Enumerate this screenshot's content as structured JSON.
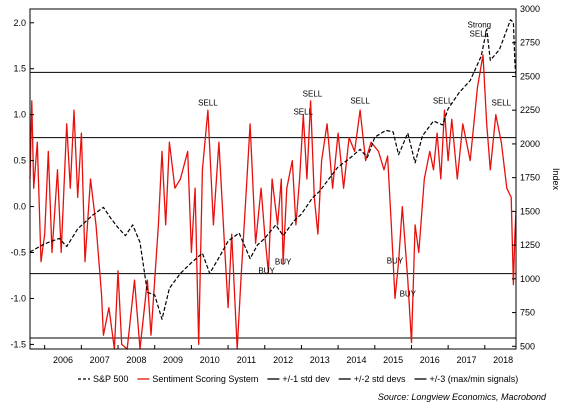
{
  "chart_data": {
    "type": "line",
    "title": "",
    "left_axis": {
      "ylim": [
        -1.55,
        2.15
      ],
      "ticks": [
        2.0,
        1.5,
        1.0,
        0.5,
        0.0,
        -0.5,
        -1.0,
        -1.5
      ],
      "tick_labels": [
        "2.0",
        "1.5",
        "1.0",
        "0.5",
        "0.0",
        "-0.5",
        "-1.0",
        "-1.5"
      ]
    },
    "right_axis": {
      "label": "Index",
      "ylim": [
        480,
        3000
      ],
      "ticks": [
        3000,
        2750,
        2500,
        2250,
        2000,
        1750,
        1500,
        1250,
        1000,
        750,
        500
      ],
      "tick_labels": [
        "3000",
        "2750",
        "2500",
        "2250",
        "2000",
        "1750",
        "1500",
        "1250",
        "1000",
        "750",
        "500"
      ]
    },
    "x_axis": {
      "xlim": [
        2005.6,
        2018.85
      ],
      "years": [
        "2006",
        "2007",
        "2008",
        "2009",
        "2010",
        "2011",
        "2012",
        "2013",
        "2014",
        "2015",
        "2016",
        "2017",
        "2018"
      ]
    },
    "reference_lines": [
      {
        "name": "+/-1 std dev",
        "values": [
          0.75,
          -0.73
        ]
      },
      {
        "name": "+/-2 std devs",
        "values": [
          1.46
        ]
      },
      {
        "name": "+/-3 (max/min signals)",
        "values": [
          -1.43
        ]
      }
    ],
    "series": [
      {
        "name": "S&P 500",
        "axis": "right",
        "color": "#000000",
        "style": "dashed",
        "points": [
          [
            2005.6,
            1200
          ],
          [
            2006.0,
            1260
          ],
          [
            2006.4,
            1300
          ],
          [
            2006.6,
            1240
          ],
          [
            2006.9,
            1370
          ],
          [
            2007.3,
            1470
          ],
          [
            2007.6,
            1530
          ],
          [
            2007.8,
            1450
          ],
          [
            2008.0,
            1380
          ],
          [
            2008.2,
            1320
          ],
          [
            2008.4,
            1400
          ],
          [
            2008.6,
            1270
          ],
          [
            2008.8,
            900
          ],
          [
            2009.0,
            880
          ],
          [
            2009.2,
            700
          ],
          [
            2009.4,
            930
          ],
          [
            2009.7,
            1040
          ],
          [
            2010.0,
            1120
          ],
          [
            2010.3,
            1190
          ],
          [
            2010.5,
            1040
          ],
          [
            2010.8,
            1180
          ],
          [
            2011.0,
            1280
          ],
          [
            2011.3,
            1340
          ],
          [
            2011.6,
            1150
          ],
          [
            2011.8,
            1250
          ],
          [
            2012.0,
            1300
          ],
          [
            2012.3,
            1400
          ],
          [
            2012.5,
            1320
          ],
          [
            2012.8,
            1430
          ],
          [
            2013.0,
            1480
          ],
          [
            2013.3,
            1600
          ],
          [
            2013.5,
            1650
          ],
          [
            2013.8,
            1760
          ],
          [
            2014.0,
            1830
          ],
          [
            2014.3,
            1890
          ],
          [
            2014.6,
            1960
          ],
          [
            2014.8,
            1900
          ],
          [
            2015.0,
            2050
          ],
          [
            2015.3,
            2100
          ],
          [
            2015.5,
            2090
          ],
          [
            2015.65,
            1920
          ],
          [
            2015.9,
            2080
          ],
          [
            2016.1,
            1860
          ],
          [
            2016.3,
            2060
          ],
          [
            2016.6,
            2170
          ],
          [
            2016.85,
            2140
          ],
          [
            2017.0,
            2260
          ],
          [
            2017.3,
            2380
          ],
          [
            2017.6,
            2470
          ],
          [
            2017.9,
            2650
          ],
          [
            2018.05,
            2850
          ],
          [
            2018.15,
            2620
          ],
          [
            2018.4,
            2700
          ],
          [
            2018.7,
            2920
          ],
          [
            2018.78,
            2900
          ],
          [
            2018.82,
            2600
          ],
          [
            2018.85,
            2500
          ]
        ]
      },
      {
        "name": "Sentiment Scoring System",
        "axis": "left",
        "color": "#e8100c",
        "style": "solid",
        "points": [
          [
            2005.6,
            0.3
          ],
          [
            2005.65,
            1.15
          ],
          [
            2005.7,
            0.2
          ],
          [
            2005.8,
            0.7
          ],
          [
            2005.9,
            -0.6
          ],
          [
            2006.0,
            -0.3
          ],
          [
            2006.1,
            0.6
          ],
          [
            2006.2,
            -0.5
          ],
          [
            2006.35,
            0.4
          ],
          [
            2006.45,
            -0.5
          ],
          [
            2006.6,
            0.9
          ],
          [
            2006.7,
            0.2
          ],
          [
            2006.8,
            1.05
          ],
          [
            2006.9,
            0.1
          ],
          [
            2007.0,
            0.8
          ],
          [
            2007.1,
            -0.6
          ],
          [
            2007.25,
            0.3
          ],
          [
            2007.4,
            -0.2
          ],
          [
            2007.55,
            -0.95
          ],
          [
            2007.6,
            -1.4
          ],
          [
            2007.75,
            -1.1
          ],
          [
            2007.9,
            -1.55
          ],
          [
            2008.0,
            -0.7
          ],
          [
            2008.1,
            -1.5
          ],
          [
            2008.25,
            -1.55
          ],
          [
            2008.45,
            -0.8
          ],
          [
            2008.6,
            -1.55
          ],
          [
            2008.8,
            -0.8
          ],
          [
            2008.9,
            -1.4
          ],
          [
            2009.1,
            -0.2
          ],
          [
            2009.2,
            0.6
          ],
          [
            2009.3,
            -0.2
          ],
          [
            2009.4,
            0.7
          ],
          [
            2009.55,
            0.2
          ],
          [
            2009.7,
            0.3
          ],
          [
            2009.9,
            0.6
          ],
          [
            2010.0,
            -0.5
          ],
          [
            2010.1,
            0.2
          ],
          [
            2010.2,
            -1.5
          ],
          [
            2010.3,
            0.4
          ],
          [
            2010.45,
            1.05
          ],
          [
            2010.6,
            -0.2
          ],
          [
            2010.75,
            0.7
          ],
          [
            2010.9,
            -0.4
          ],
          [
            2011.0,
            -1.1
          ],
          [
            2011.1,
            -0.3
          ],
          [
            2011.25,
            -1.55
          ],
          [
            2011.35,
            -0.8
          ],
          [
            2011.5,
            0.2
          ],
          [
            2011.6,
            0.9
          ],
          [
            2011.75,
            -0.4
          ],
          [
            2011.9,
            0.2
          ],
          [
            2012.0,
            -0.3
          ],
          [
            2012.1,
            -0.72
          ],
          [
            2012.2,
            0.3
          ],
          [
            2012.35,
            -0.2
          ],
          [
            2012.45,
            0.3
          ],
          [
            2012.5,
            -0.62
          ],
          [
            2012.6,
            0.2
          ],
          [
            2012.75,
            0.5
          ],
          [
            2012.85,
            -0.2
          ],
          [
            2012.95,
            0.3
          ],
          [
            2013.05,
            1.0
          ],
          [
            2013.15,
            0.3
          ],
          [
            2013.25,
            1.15
          ],
          [
            2013.35,
            0.1
          ],
          [
            2013.45,
            -0.3
          ],
          [
            2013.55,
            0.5
          ],
          [
            2013.7,
            0.9
          ],
          [
            2013.85,
            0.2
          ],
          [
            2014.0,
            0.8
          ],
          [
            2014.15,
            0.2
          ],
          [
            2014.3,
            0.75
          ],
          [
            2014.45,
            0.6
          ],
          [
            2014.6,
            1.05
          ],
          [
            2014.75,
            0.5
          ],
          [
            2014.9,
            0.7
          ],
          [
            2015.1,
            0.6
          ],
          [
            2015.25,
            0.4
          ],
          [
            2015.35,
            0.55
          ],
          [
            2015.45,
            -0.2
          ],
          [
            2015.55,
            -1.0
          ],
          [
            2015.65,
            -0.6
          ],
          [
            2015.75,
            0.0
          ],
          [
            2015.9,
            -0.8
          ],
          [
            2016.0,
            -1.48
          ],
          [
            2016.1,
            -0.2
          ],
          [
            2016.2,
            -0.5
          ],
          [
            2016.35,
            0.3
          ],
          [
            2016.5,
            0.6
          ],
          [
            2016.6,
            0.4
          ],
          [
            2016.7,
            0.8
          ],
          [
            2016.8,
            0.3
          ],
          [
            2016.9,
            1.05
          ],
          [
            2017.0,
            0.5
          ],
          [
            2017.1,
            0.95
          ],
          [
            2017.25,
            0.3
          ],
          [
            2017.4,
            0.9
          ],
          [
            2017.6,
            0.5
          ],
          [
            2017.8,
            1.3
          ],
          [
            2017.95,
            1.65
          ],
          [
            2018.05,
            0.9
          ],
          [
            2018.15,
            0.4
          ],
          [
            2018.3,
            1.0
          ],
          [
            2018.45,
            0.7
          ],
          [
            2018.6,
            0.2
          ],
          [
            2018.72,
            0.1
          ],
          [
            2018.78,
            -0.85
          ],
          [
            2018.82,
            -0.3
          ],
          [
            2018.85,
            -0.05
          ]
        ]
      }
    ],
    "annotations": [
      {
        "text": "SELL",
        "x": 2010.45,
        "y": 1.1
      },
      {
        "text": "SELL",
        "x": 2013.05,
        "y": 1.0
      },
      {
        "text": "SELL",
        "x": 2013.3,
        "y": 1.2
      },
      {
        "text": "SELL",
        "x": 2014.6,
        "y": 1.12
      },
      {
        "text": "SELL",
        "x": 2016.85,
        "y": 1.12
      },
      {
        "text": "Strong",
        "x": 2017.85,
        "y": 1.95
      },
      {
        "text": "SELL",
        "x": 2017.85,
        "y": 1.85
      },
      {
        "text": "SELL",
        "x": 2018.45,
        "y": 1.1
      },
      {
        "text": "BUY",
        "x": 2012.05,
        "y": -0.73
      },
      {
        "text": "BUY",
        "x": 2012.5,
        "y": -0.63
      },
      {
        "text": "BUY",
        "x": 2015.55,
        "y": -0.62
      },
      {
        "text": "BUY",
        "x": 2015.9,
        "y": -0.98
      }
    ],
    "legend": {
      "placement": "bottom",
      "entries": [
        {
          "label": "S&P 500",
          "color": "#000000",
          "style": "dashed"
        },
        {
          "label": "Sentiment Scoring System",
          "color": "#e8100c",
          "style": "solid"
        },
        {
          "label": "+/-1 std dev",
          "color": "#000000",
          "style": "solid"
        },
        {
          "label": "+/-2 std devs",
          "color": "#000000",
          "style": "solid"
        },
        {
          "label": "+/-3 (max/min signals)",
          "color": "#000000",
          "style": "solid"
        }
      ]
    },
    "source": "Source: Longview Economics, Macrobond",
    "grid": false
  }
}
